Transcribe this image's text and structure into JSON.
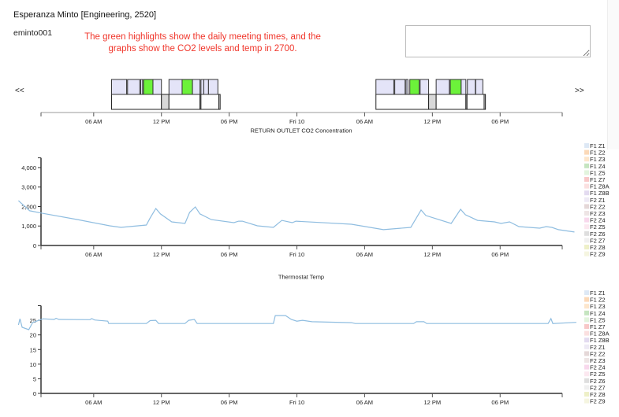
{
  "header": {
    "title": "Esperanza Minto [Engineering, 2520]",
    "username": "eminto001",
    "annotation": "The green highlights show the daily meeting times, and the graphs show the CO2 levels and temp in 2700.",
    "annotation_color": "#f0352a",
    "notes_value": ""
  },
  "nav": {
    "prev": "<<",
    "next": ">>"
  },
  "x_axis": {
    "domain": [
      "Thu 01:20",
      "Fri 23:30"
    ],
    "ticks": [
      {
        "t": "Thu 06:00",
        "label": "06 AM"
      },
      {
        "t": "Thu 12:00",
        "label": "12 PM"
      },
      {
        "t": "Thu 18:00",
        "label": "06 PM"
      },
      {
        "t": "Fri 00:00",
        "label": "Fri 10"
      },
      {
        "t": "Fri 06:00",
        "label": "06 AM"
      },
      {
        "t": "Fri 12:00",
        "label": "12 PM"
      },
      {
        "t": "Fri 18:00",
        "label": "06 PM"
      }
    ]
  },
  "colors": {
    "schedule": "#e4e4f8",
    "meeting": "#6cf23a",
    "gap": "#d8d8d8",
    "line": "#8fbde0"
  },
  "schedule": {
    "top": [
      [
        "Thu 07:35",
        "Thu 08:55",
        "schedule"
      ],
      [
        "Thu 09:00",
        "Thu 10:05",
        "schedule"
      ],
      [
        "Thu 10:10",
        "Thu 10:20",
        "schedule"
      ],
      [
        "Thu 10:25",
        "Thu 11:15",
        "meeting"
      ],
      [
        "Thu 11:15",
        "Thu 12:00",
        "schedule"
      ],
      [
        "Thu 12:40",
        "Thu 13:50",
        "schedule"
      ],
      [
        "Thu 13:50",
        "Thu 14:45",
        "meeting"
      ],
      [
        "Thu 14:45",
        "Thu 15:25",
        "schedule"
      ],
      [
        "Thu 15:30",
        "Thu 15:45",
        "schedule"
      ],
      [
        "Thu 15:45",
        "Thu 16:10",
        "schedule"
      ],
      [
        "Thu 16:10",
        "Thu 17:00",
        "schedule"
      ],
      [
        "Fri 07:00",
        "Fri 08:35",
        "schedule"
      ],
      [
        "Fri 08:40",
        "Fri 09:35",
        "schedule"
      ],
      [
        "Fri 09:40",
        "Fri 09:50",
        "schedule"
      ],
      [
        "Fri 10:00",
        "Fri 10:50",
        "meeting"
      ],
      [
        "Fri 10:55",
        "Fri 11:40",
        "schedule"
      ],
      [
        "Fri 12:20",
        "Fri 13:30",
        "schedule"
      ],
      [
        "Fri 13:35",
        "Fri 14:33",
        "meeting"
      ],
      [
        "Fri 14:33",
        "Fri 14:58",
        "schedule"
      ],
      [
        "Fri 15:06",
        "Fri 15:48",
        "schedule"
      ],
      [
        "Fri 15:50",
        "Fri 16:28",
        "schedule"
      ]
    ],
    "bottom": [
      [
        "Thu 07:35",
        "Thu 12:00",
        "blank"
      ],
      [
        "Thu 12:00",
        "Thu 12:40",
        "gap"
      ],
      [
        "Thu 12:40",
        "Thu 15:25",
        "blank"
      ],
      [
        "Thu 15:25",
        "Thu 15:30",
        "gap"
      ],
      [
        "Thu 15:30",
        "Thu 17:05",
        "blank"
      ],
      [
        "Thu 17:05",
        "Thu 17:12",
        "gap"
      ],
      [
        "Fri 07:00",
        "Fri 11:40",
        "blank"
      ],
      [
        "Fri 11:40",
        "Fri 12:20",
        "gap"
      ],
      [
        "Fri 12:20",
        "Fri 14:58",
        "blank"
      ],
      [
        "Fri 14:58",
        "Fri 15:04",
        "gap"
      ],
      [
        "Fri 15:04",
        "Fri 16:35",
        "blank"
      ],
      [
        "Fri 16:35",
        "Fri 16:42",
        "gap"
      ]
    ]
  },
  "chart_data": [
    {
      "type": "line",
      "title": "RETURN OUTLET CO2 Concentration",
      "ylim": [
        0,
        4500
      ],
      "yticks": [
        0,
        1000,
        2000,
        3000,
        4000
      ],
      "ytick_labels": [
        "0",
        "1,000",
        "2,000",
        "3,000",
        "4,000"
      ],
      "points": [
        [
          "Wed 23:20",
          2300
        ],
        [
          "Thu 00:20",
          1780
        ],
        [
          "Thu 01:30",
          1650
        ],
        [
          "Thu 04:35",
          1330
        ],
        [
          "Thu 07:25",
          1010
        ],
        [
          "Thu 08:25",
          930
        ],
        [
          "Thu 10:40",
          1050
        ],
        [
          "Thu 11:00",
          1410
        ],
        [
          "Thu 11:30",
          1900
        ],
        [
          "Thu 11:55",
          1620
        ],
        [
          "Thu 12:55",
          1210
        ],
        [
          "Thu 14:05",
          1130
        ],
        [
          "Thu 14:30",
          1700
        ],
        [
          "Thu 15:00",
          1980
        ],
        [
          "Thu 15:25",
          1620
        ],
        [
          "Thu 16:25",
          1330
        ],
        [
          "Thu 18:25",
          1170
        ],
        [
          "Thu 18:50",
          1250
        ],
        [
          "Thu 19:10",
          1250
        ],
        [
          "Thu 20:30",
          1010
        ],
        [
          "Thu 21:55",
          930
        ],
        [
          "Thu 22:40",
          1290
        ],
        [
          "Thu 23:35",
          1170
        ],
        [
          "Thu 23:55",
          1250
        ],
        [
          "Fri 04:50",
          1090
        ],
        [
          "Fri 07:40",
          810
        ],
        [
          "Fri 10:05",
          930
        ],
        [
          "Fri 11:00",
          1820
        ],
        [
          "Fri 11:25",
          1540
        ],
        [
          "Fri 13:40",
          1130
        ],
        [
          "Fri 14:30",
          1860
        ],
        [
          "Fri 14:55",
          1580
        ],
        [
          "Fri 16:00",
          1290
        ],
        [
          "Fri 17:30",
          1210
        ],
        [
          "Fri 18:05",
          1130
        ],
        [
          "Fri 18:50",
          1210
        ],
        [
          "Fri 19:40",
          970
        ],
        [
          "Fri 21:30",
          890
        ],
        [
          "Fri 22:05",
          970
        ],
        [
          "Fri 22:35",
          930
        ],
        [
          "Fri 23:10",
          810
        ],
        [
          "Fri 24:35",
          690
        ]
      ],
      "legend": [
        {
          "label": "F1 Z1",
          "color": "#dde8f5"
        },
        {
          "label": "F1 Z2",
          "color": "#fbd9b8"
        },
        {
          "label": "F1 Z3",
          "color": "#fde6cc"
        },
        {
          "label": "F1 Z4",
          "color": "#c5e5c0"
        },
        {
          "label": "F1 Z5",
          "color": "#e2f4dd"
        },
        {
          "label": "F1 Z7",
          "color": "#f8c8c8"
        },
        {
          "label": "F1 Z8A",
          "color": "#fbe0e0"
        },
        {
          "label": "F1 Z8B",
          "color": "#e3dbf0"
        },
        {
          "label": "F2 Z1",
          "color": "#eeeaf5"
        },
        {
          "label": "F2 Z2",
          "color": "#e5d8d8"
        },
        {
          "label": "F2 Z3",
          "color": "#eee5e5"
        },
        {
          "label": "F2 Z4",
          "color": "#f8d8ec"
        },
        {
          "label": "F2 Z5",
          "color": "#fce8f0"
        },
        {
          "label": "F2 Z6",
          "color": "#dedede"
        },
        {
          "label": "F2 Z7",
          "color": "#f0f0f0"
        },
        {
          "label": "F2 Z8",
          "color": "#eef0c8"
        },
        {
          "label": "F2 Z9",
          "color": "#f5f5e0"
        }
      ],
      "legend_placement": "right"
    },
    {
      "type": "line",
      "title": "Thermostat Temp",
      "ylim": [
        0,
        30
      ],
      "yticks": [
        0,
        5,
        10,
        15,
        20,
        25
      ],
      "ytick_labels": [
        "0",
        "5",
        "10",
        "15",
        "20",
        "25"
      ],
      "points": [
        [
          "Wed 23:20",
          23.4
        ],
        [
          "Wed 23:28",
          25.5
        ],
        [
          "Wed 23:40",
          22.6
        ],
        [
          "Thu 00:15",
          21.8
        ],
        [
          "Thu 00:35",
          24.2
        ],
        [
          "Thu 01:30",
          25.5
        ],
        [
          "Thu 02:30",
          25.3
        ],
        [
          "Thu 02:40",
          25.7
        ],
        [
          "Thu 02:55",
          25.3
        ],
        [
          "Thu 05:40",
          25.2
        ],
        [
          "Thu 05:50",
          25.6
        ],
        [
          "Thu 06:05",
          25.1
        ],
        [
          "Thu 07:15",
          24.7
        ],
        [
          "Thu 07:20",
          23.9
        ],
        [
          "Thu 10:40",
          23.9
        ],
        [
          "Thu 11:00",
          24.9
        ],
        [
          "Thu 11:30",
          25.0
        ],
        [
          "Thu 11:45",
          23.9
        ],
        [
          "Thu 14:05",
          23.9
        ],
        [
          "Thu 14:25",
          25.0
        ],
        [
          "Thu 14:55",
          25.3
        ],
        [
          "Thu 15:10",
          23.9
        ],
        [
          "Thu 21:55",
          23.9
        ],
        [
          "Thu 22:05",
          26.6
        ],
        [
          "Thu 23:00",
          26.6
        ],
        [
          "Thu 23:30",
          25.3
        ],
        [
          "Fri 00:00",
          24.7
        ],
        [
          "Fri 00:30",
          25.0
        ],
        [
          "Fri 01:20",
          24.5
        ],
        [
          "Fri 04:50",
          24.2
        ],
        [
          "Fri 05:10",
          23.9
        ],
        [
          "Fri 10:20",
          23.9
        ],
        [
          "Fri 10:35",
          24.5
        ],
        [
          "Fri 11:15",
          24.5
        ],
        [
          "Fri 11:30",
          23.9
        ],
        [
          "Fri 22:15",
          23.9
        ],
        [
          "Fri 22:30",
          25.6
        ],
        [
          "Fri 22:40",
          23.9
        ],
        [
          "Fri 24:45",
          24.3
        ]
      ],
      "legend": [
        {
          "label": "F1 Z1",
          "color": "#dde8f5"
        },
        {
          "label": "F1 Z2",
          "color": "#fbd9b8"
        },
        {
          "label": "F1 Z3",
          "color": "#fde6cc"
        },
        {
          "label": "F1 Z4",
          "color": "#c5e5c0"
        },
        {
          "label": "F1 Z5",
          "color": "#e2f4dd"
        },
        {
          "label": "F1 Z7",
          "color": "#f8c8c8"
        },
        {
          "label": "F1 Z8A",
          "color": "#fbe0e0"
        },
        {
          "label": "F1 Z8B",
          "color": "#e3dbf0"
        },
        {
          "label": "F2 Z1",
          "color": "#eeeaf5"
        },
        {
          "label": "F2 Z2",
          "color": "#e5d8d8"
        },
        {
          "label": "F2 Z3",
          "color": "#eee5e5"
        },
        {
          "label": "F2 Z4",
          "color": "#f8d8ec"
        },
        {
          "label": "F2 Z5",
          "color": "#fce8f0"
        },
        {
          "label": "F2 Z6",
          "color": "#dedede"
        },
        {
          "label": "F2 Z7",
          "color": "#f0f0f0"
        },
        {
          "label": "F2 Z8",
          "color": "#eef0c8"
        },
        {
          "label": "F2 Z9",
          "color": "#f5f5e0"
        }
      ],
      "legend_placement": "right"
    }
  ]
}
